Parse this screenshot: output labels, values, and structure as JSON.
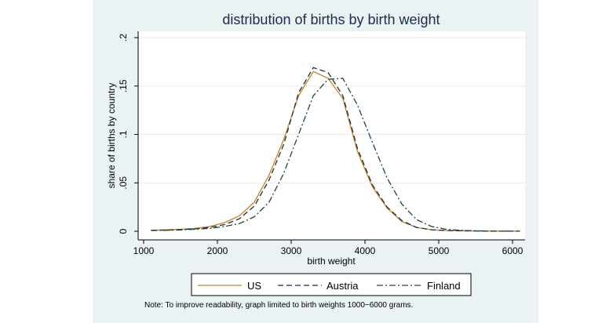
{
  "chart_data": {
    "type": "line",
    "title": "distribution of births by birth weight",
    "xlabel": "birth weight",
    "ylabel": "share of births by country",
    "xlim": [
      1000,
      6000
    ],
    "ylim": [
      0,
      0.2
    ],
    "xticks": [
      1000,
      2000,
      3000,
      4000,
      5000,
      6000
    ],
    "yticks": [
      0,
      0.05,
      0.1,
      0.15,
      0.2
    ],
    "ytick_labels": [
      "0",
      ".05",
      ".1",
      ".15",
      ".2"
    ],
    "grid": true,
    "legend_position": "bottom",
    "note": "Note: To improve readability, graph limited to birth weights 1000−6000 grams.",
    "series": [
      {
        "name": "US",
        "color": "#c8821e",
        "dash": "solid",
        "x": [
          1100,
          1300,
          1500,
          1700,
          1900,
          2100,
          2300,
          2500,
          2700,
          2900,
          3100,
          3300,
          3500,
          3700,
          3900,
          4100,
          4300,
          4500,
          4700,
          4900,
          5100,
          5300,
          5500,
          5700,
          5900,
          6100
        ],
        "y": [
          0.001,
          0.0015,
          0.002,
          0.003,
          0.005,
          0.009,
          0.016,
          0.03,
          0.058,
          0.095,
          0.14,
          0.165,
          0.158,
          0.137,
          0.082,
          0.046,
          0.024,
          0.01,
          0.004,
          0.0015,
          0.0008,
          0.0005,
          0.0003,
          0.0002,
          0.0001,
          0.0001
        ]
      },
      {
        "name": "Austria",
        "color": "#1a2c50",
        "dash": "dashed",
        "x": [
          1100,
          1300,
          1500,
          1700,
          1900,
          2100,
          2300,
          2500,
          2700,
          2900,
          3100,
          3300,
          3500,
          3700,
          3900,
          4100,
          4300,
          4500,
          4700,
          4900,
          5100,
          5300,
          5500,
          5700,
          5900,
          6100
        ],
        "y": [
          0.001,
          0.0012,
          0.0018,
          0.0025,
          0.004,
          0.007,
          0.013,
          0.026,
          0.053,
          0.09,
          0.143,
          0.169,
          0.164,
          0.14,
          0.085,
          0.048,
          0.025,
          0.011,
          0.004,
          0.0015,
          0.0008,
          0.0005,
          0.0003,
          0.0002,
          0.0001,
          0.0001
        ]
      },
      {
        "name": "Finland",
        "color": "#1f4a2c",
        "dash": "dashdot",
        "x": [
          1100,
          1300,
          1500,
          1700,
          1900,
          2100,
          2300,
          2500,
          2700,
          2900,
          3100,
          3300,
          3500,
          3700,
          3900,
          4100,
          4300,
          4500,
          4700,
          4900,
          5100,
          5300,
          5500,
          5700,
          5900,
          6100
        ],
        "y": [
          0.0008,
          0.001,
          0.0014,
          0.002,
          0.003,
          0.005,
          0.008,
          0.015,
          0.03,
          0.06,
          0.1,
          0.14,
          0.157,
          0.158,
          0.13,
          0.092,
          0.055,
          0.028,
          0.012,
          0.005,
          0.002,
          0.001,
          0.0005,
          0.0003,
          0.0002,
          0.0001
        ]
      }
    ]
  }
}
